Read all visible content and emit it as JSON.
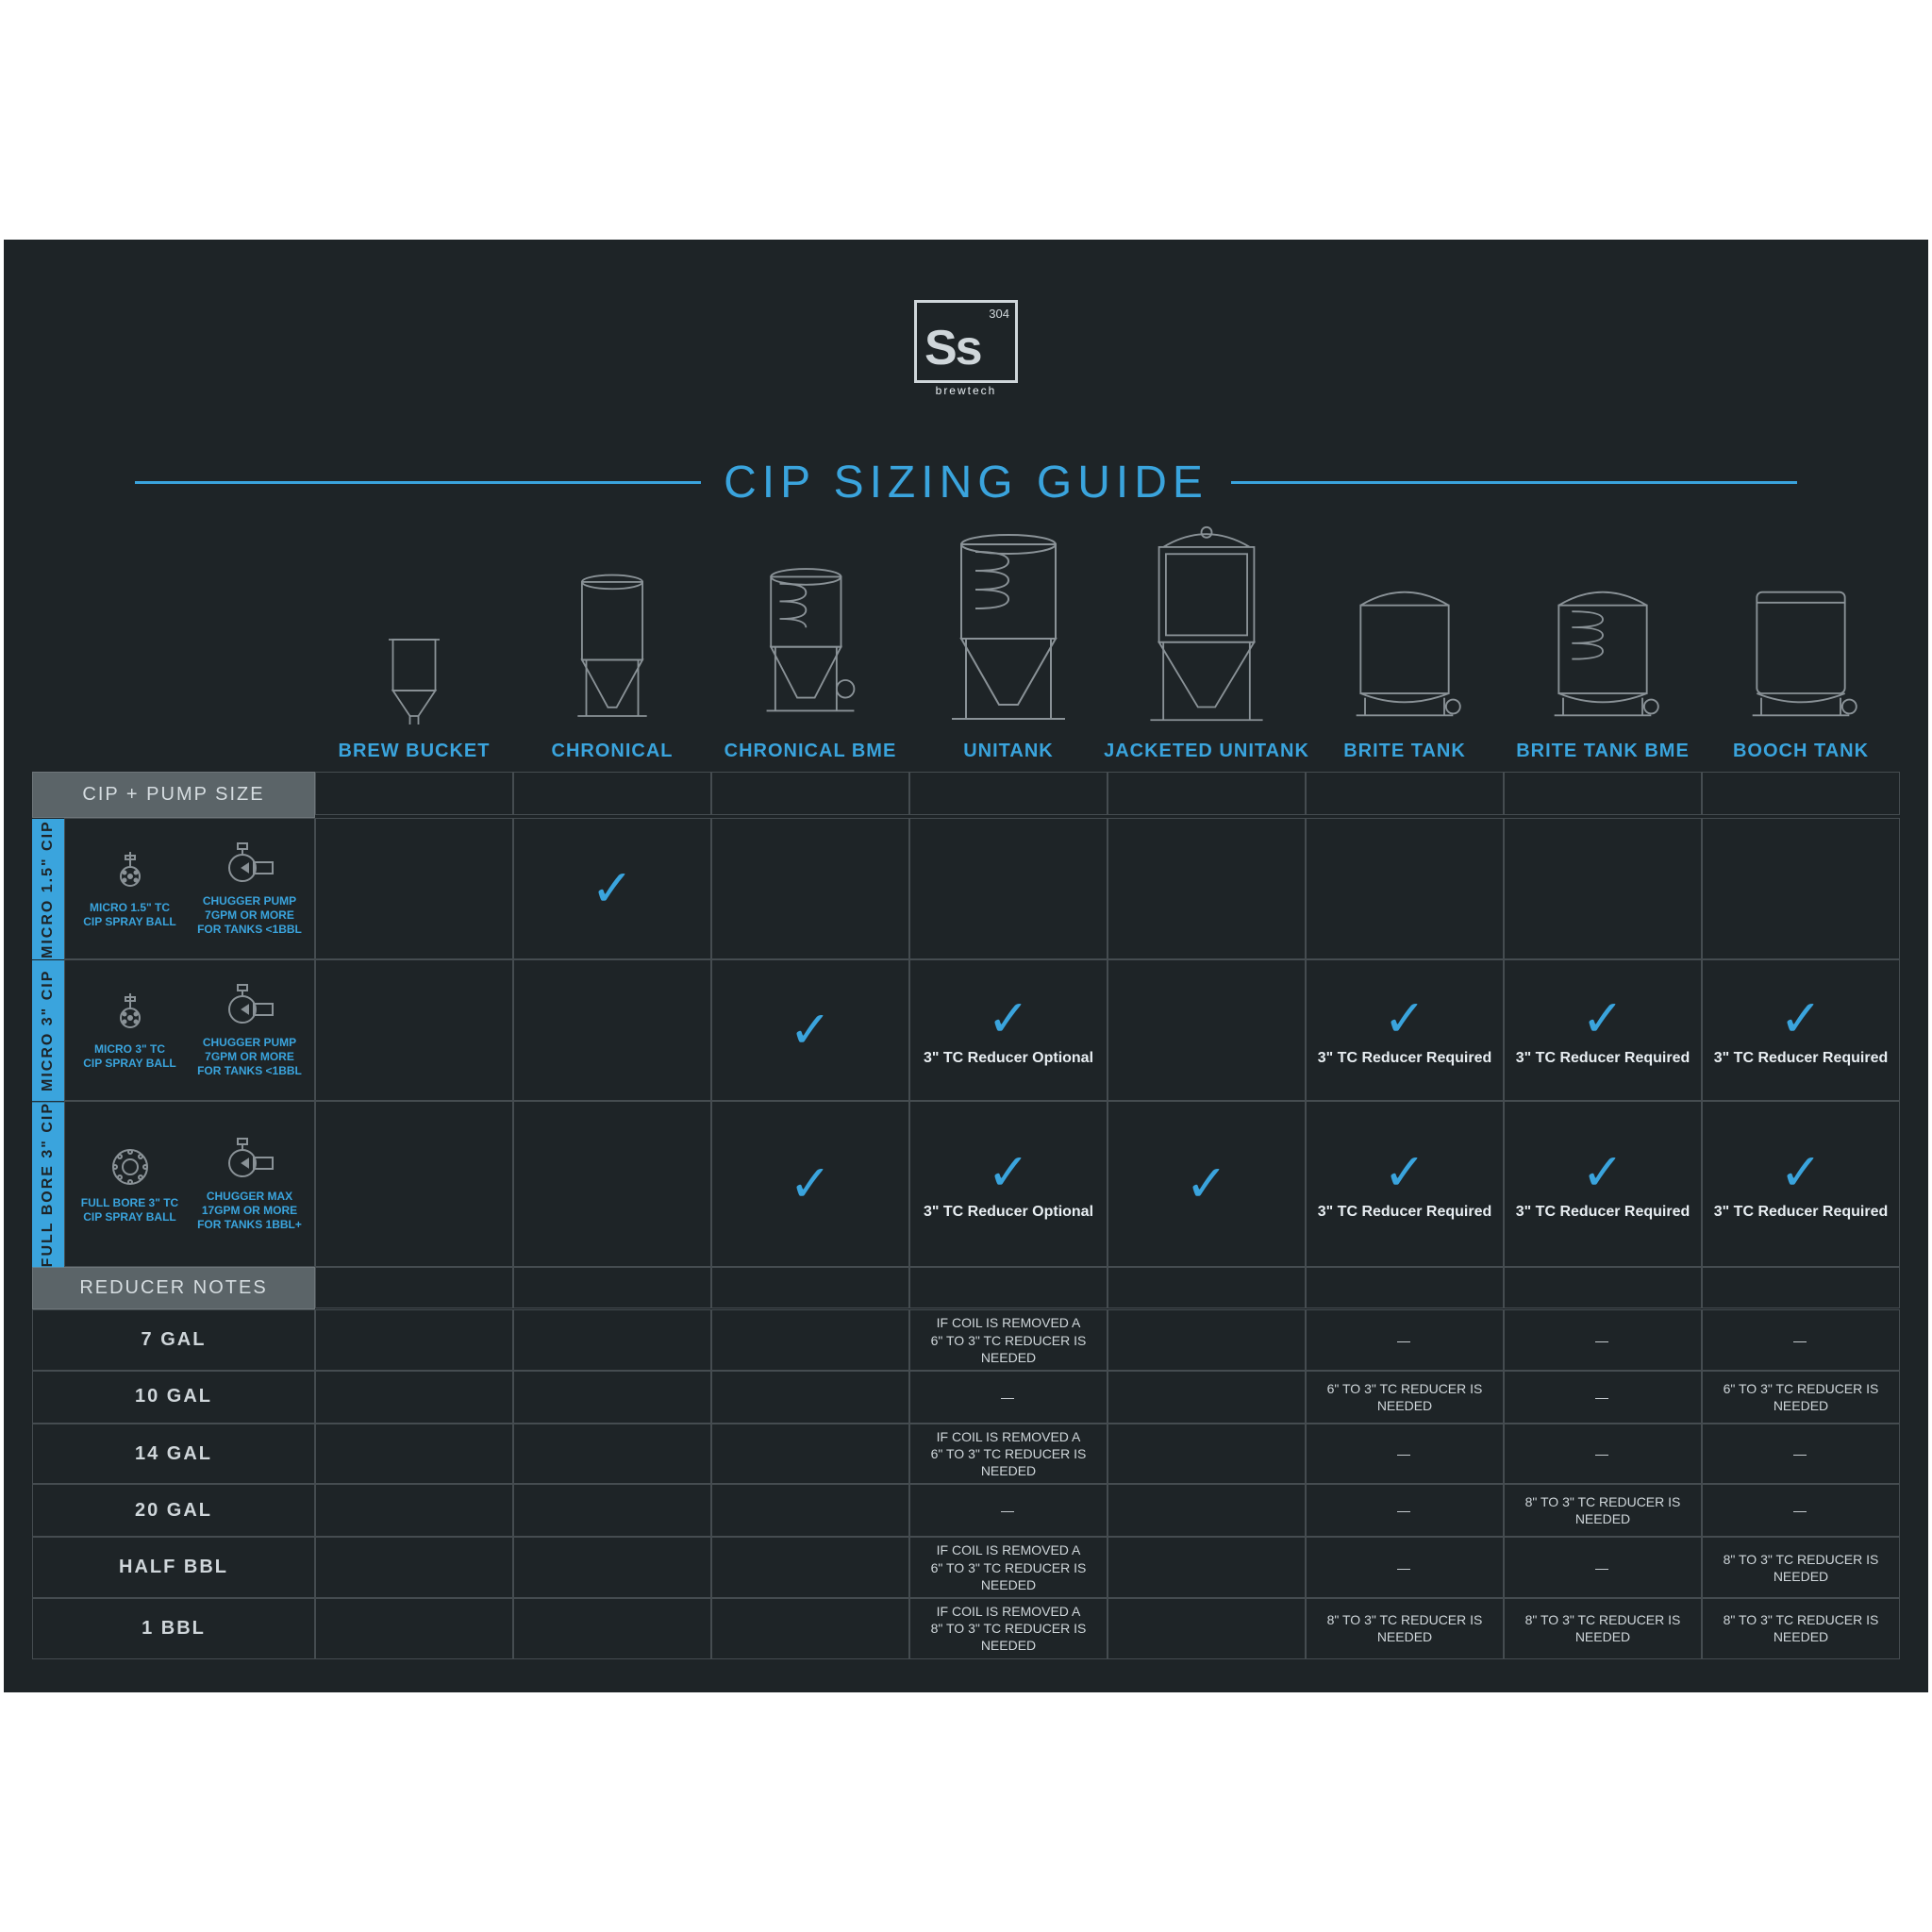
{
  "colors": {
    "bg": "#1e2427",
    "accent": "#3aa4dd",
    "line": "#454c50",
    "header": "#5b6468",
    "text": "#e8eef2",
    "muted": "#cfd6da"
  },
  "logo": {
    "big": "Ss",
    "num": "304",
    "word": "brewtech"
  },
  "title": "CIP SIZING GUIDE",
  "tanks": [
    "BREW BUCKET",
    "CHRONICAL",
    "CHRONICAL BME",
    "UNITANK",
    "JACKETED UNITANK",
    "BRITE TANK",
    "BRITE TANK BME",
    "BOOCH TANK"
  ],
  "cip_header": "CIP + PUMP SIZE",
  "rows": [
    {
      "tab": "MICRO 1.5\" CIP",
      "left": {
        "l1": "MICRO 1.5\" TC",
        "l2": "CIP SPRAY BALL"
      },
      "right": {
        "l1": "CHUGGER PUMP",
        "l2": "7GPM OR MORE",
        "l3": "FOR TANKS <1BBL"
      },
      "cells": [
        null,
        {
          "check": true
        },
        null,
        null,
        null,
        null,
        null,
        null
      ]
    },
    {
      "tab": "MICRO 3\" CIP",
      "left": {
        "l1": "MICRO 3\" TC",
        "l2": "CIP SPRAY BALL"
      },
      "right": {
        "l1": "CHUGGER PUMP",
        "l2": "7GPM OR MORE",
        "l3": "FOR TANKS <1BBL"
      },
      "cells": [
        null,
        null,
        {
          "check": true
        },
        {
          "check": true,
          "note": "3\" TC Reducer Optional"
        },
        null,
        {
          "check": true,
          "note": "3\" TC Reducer Required"
        },
        {
          "check": true,
          "note": "3\" TC Reducer Required"
        },
        {
          "check": true,
          "note": "3\" TC Reducer Required"
        }
      ]
    },
    {
      "tab": "FULL BORE 3\" CIP",
      "left": {
        "l1": "FULL BORE 3\" TC",
        "l2": "CIP SPRAY BALL"
      },
      "right": {
        "l1": "CHUGGER MAX",
        "l2": "17GPM OR MORE",
        "l3": "FOR TANKS 1BBL+"
      },
      "cells": [
        null,
        null,
        {
          "check": true
        },
        {
          "check": true,
          "note": "3\" TC Reducer Optional"
        },
        {
          "check": true
        },
        {
          "check": true,
          "note": "3\" TC Reducer Required"
        },
        {
          "check": true,
          "note": "3\" TC Reducer Required"
        },
        {
          "check": true,
          "note": "3\" TC Reducer Required"
        }
      ]
    }
  ],
  "reducer_header": "REDUCER NOTES",
  "coil6": "IF COIL IS REMOVED A\n6\" TO 3\" TC REDUCER IS NEEDED",
  "coil8": "IF COIL IS REMOVED A\n8\" TO 3\" TC REDUCER IS NEEDED",
  "r6": "6\" TO 3\" TC REDUCER IS NEEDED",
  "r8": "8\" TO 3\" TC REDUCER IS NEEDED",
  "dash": "—",
  "sizes": [
    {
      "label": "7 GAL",
      "cells": [
        "",
        "",
        "",
        "coil6",
        "",
        "dash",
        "dash",
        "dash"
      ]
    },
    {
      "label": "10 GAL",
      "cells": [
        "",
        "",
        "",
        "dash",
        "",
        "r6",
        "dash",
        "r6"
      ]
    },
    {
      "label": "14 GAL",
      "cells": [
        "",
        "",
        "",
        "coil6",
        "",
        "dash",
        "dash",
        "dash"
      ]
    },
    {
      "label": "20 GAL",
      "cells": [
        "",
        "",
        "",
        "dash",
        "",
        "dash",
        "r8",
        "dash"
      ]
    },
    {
      "label": "HALF BBL",
      "cells": [
        "",
        "",
        "",
        "coil6",
        "",
        "dash",
        "dash",
        "r8"
      ]
    },
    {
      "label": "1 BBL",
      "cells": [
        "",
        "",
        "",
        "coil8",
        "",
        "r8",
        "r8",
        "r8"
      ]
    }
  ]
}
